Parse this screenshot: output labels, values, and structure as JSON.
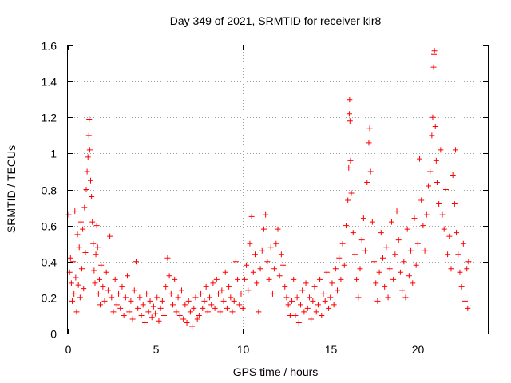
{
  "chart_data": {
    "type": "scatter",
    "title": "Day 349 of 2021, SRMTID for receiver kir8",
    "xlabel": "GPS time / hours",
    "ylabel": "SRMTID / TECUs",
    "xlim": [
      0,
      24
    ],
    "ylim": [
      0,
      1.6
    ],
    "grid": true,
    "marker": "plus",
    "color": "#ff0000",
    "x_ticks": [
      0,
      5,
      10,
      15,
      20
    ],
    "x_tick_labels": [
      "0",
      "5",
      "10",
      "15",
      "20"
    ],
    "y_ticks": [
      0,
      0.2,
      0.4,
      0.6,
      0.8,
      1.0,
      1.2,
      1.4,
      1.6
    ],
    "y_tick_labels": [
      "0",
      "0.2",
      "0.4",
      "0.6",
      "0.8",
      "1",
      "1.2",
      "1.4",
      "1.6"
    ],
    "series": [
      {
        "name": "SRMTID",
        "points": [
          [
            0.05,
            0.66
          ],
          [
            0.1,
            0.34
          ],
          [
            0.15,
            0.42
          ],
          [
            0.2,
            0.28
          ],
          [
            0.25,
            0.18
          ],
          [
            0.3,
            0.4
          ],
          [
            0.35,
            0.22
          ],
          [
            0.4,
            0.68
          ],
          [
            0.45,
            0.31
          ],
          [
            0.5,
            0.12
          ],
          [
            0.55,
            0.55
          ],
          [
            0.6,
            0.27
          ],
          [
            0.65,
            0.48
          ],
          [
            0.7,
            0.2
          ],
          [
            0.75,
            0.62
          ],
          [
            0.8,
            0.36
          ],
          [
            0.85,
            0.58
          ],
          [
            0.9,
            0.25
          ],
          [
            0.95,
            0.7
          ],
          [
            1.0,
            0.45
          ],
          [
            1.05,
            0.8
          ],
          [
            1.1,
            0.9
          ],
          [
            1.15,
            0.98
          ],
          [
            1.2,
            1.1
          ],
          [
            1.22,
            1.19
          ],
          [
            1.25,
            1.02
          ],
          [
            1.3,
            0.85
          ],
          [
            1.35,
            0.76
          ],
          [
            1.4,
            0.62
          ],
          [
            1.45,
            0.5
          ],
          [
            1.5,
            0.35
          ],
          [
            1.55,
            0.28
          ],
          [
            1.6,
            0.44
          ],
          [
            1.65,
            0.6
          ],
          [
            1.7,
            0.48
          ],
          [
            1.75,
            0.22
          ],
          [
            1.8,
            0.3
          ],
          [
            1.85,
            0.16
          ],
          [
            1.9,
            0.38
          ],
          [
            2.0,
            0.26
          ],
          [
            2.1,
            0.18
          ],
          [
            2.2,
            0.34
          ],
          [
            2.3,
            0.24
          ],
          [
            2.4,
            0.54
          ],
          [
            2.5,
            0.2
          ],
          [
            2.6,
            0.12
          ],
          [
            2.7,
            0.3
          ],
          [
            2.8,
            0.16
          ],
          [
            2.9,
            0.22
          ],
          [
            3.0,
            0.14
          ],
          [
            3.1,
            0.26
          ],
          [
            3.2,
            0.1
          ],
          [
            3.3,
            0.2
          ],
          [
            3.4,
            0.32
          ],
          [
            3.5,
            0.12
          ],
          [
            3.6,
            0.18
          ],
          [
            3.7,
            0.08
          ],
          [
            3.8,
            0.24
          ],
          [
            3.9,
            0.4
          ],
          [
            4.0,
            0.14
          ],
          [
            4.1,
            0.2
          ],
          [
            4.2,
            0.1
          ],
          [
            4.3,
            0.16
          ],
          [
            4.4,
            0.06
          ],
          [
            4.5,
            0.22
          ],
          [
            4.6,
            0.12
          ],
          [
            4.7,
            0.18
          ],
          [
            4.8,
            0.09
          ],
          [
            4.9,
            0.15
          ],
          [
            5.0,
            0.11
          ],
          [
            5.1,
            0.2
          ],
          [
            5.2,
            0.07
          ],
          [
            5.3,
            0.14
          ],
          [
            5.4,
            0.18
          ],
          [
            5.5,
            0.1
          ],
          [
            5.6,
            0.26
          ],
          [
            5.7,
            0.42
          ],
          [
            5.8,
            0.32
          ],
          [
            5.9,
            0.22
          ],
          [
            6.0,
            0.16
          ],
          [
            6.1,
            0.3
          ],
          [
            6.2,
            0.12
          ],
          [
            6.3,
            0.2
          ],
          [
            6.4,
            0.1
          ],
          [
            6.5,
            0.24
          ],
          [
            6.6,
            0.08
          ],
          [
            6.7,
            0.16
          ],
          [
            6.8,
            0.06
          ],
          [
            6.9,
            0.18
          ],
          [
            7.0,
            0.12
          ],
          [
            7.1,
            0.04
          ],
          [
            7.2,
            0.14
          ],
          [
            7.3,
            0.2
          ],
          [
            7.4,
            0.08
          ],
          [
            7.5,
            0.1
          ],
          [
            7.6,
            0.22
          ],
          [
            7.7,
            0.14
          ],
          [
            7.8,
            0.18
          ],
          [
            7.9,
            0.26
          ],
          [
            8.0,
            0.12
          ],
          [
            8.1,
            0.2
          ],
          [
            8.2,
            0.16
          ],
          [
            8.3,
            0.28
          ],
          [
            8.4,
            0.14
          ],
          [
            8.5,
            0.3
          ],
          [
            8.6,
            0.22
          ],
          [
            8.7,
            0.12
          ],
          [
            8.8,
            0.24
          ],
          [
            8.9,
            0.18
          ],
          [
            9.0,
            0.34
          ],
          [
            9.1,
            0.14
          ],
          [
            9.2,
            0.26
          ],
          [
            9.3,
            0.2
          ],
          [
            9.4,
            0.12
          ],
          [
            9.5,
            0.18
          ],
          [
            9.6,
            0.4
          ],
          [
            9.7,
            0.3
          ],
          [
            9.8,
            0.16
          ],
          [
            9.9,
            0.22
          ],
          [
            10.0,
            0.14
          ],
          [
            10.1,
            0.3
          ],
          [
            10.2,
            0.38
          ],
          [
            10.3,
            0.24
          ],
          [
            10.4,
            0.5
          ],
          [
            10.5,
            0.65
          ],
          [
            10.6,
            0.34
          ],
          [
            10.7,
            0.44
          ],
          [
            10.8,
            0.28
          ],
          [
            10.9,
            0.12
          ],
          [
            11.0,
            0.36
          ],
          [
            11.1,
            0.46
          ],
          [
            11.2,
            0.58
          ],
          [
            11.3,
            0.66
          ],
          [
            11.4,
            0.4
          ],
          [
            11.5,
            0.3
          ],
          [
            11.6,
            0.48
          ],
          [
            11.7,
            0.22
          ],
          [
            11.8,
            0.36
          ],
          [
            11.9,
            0.5
          ],
          [
            12.0,
            0.58
          ],
          [
            12.1,
            0.32
          ],
          [
            12.2,
            0.44
          ],
          [
            12.3,
            0.38
          ],
          [
            12.4,
            0.26
          ],
          [
            12.5,
            0.2
          ],
          [
            12.6,
            0.16
          ],
          [
            12.7,
            0.1
          ],
          [
            12.8,
            0.18
          ],
          [
            12.9,
            0.3
          ],
          [
            13.0,
            0.1
          ],
          [
            13.1,
            0.2
          ],
          [
            13.2,
            0.06
          ],
          [
            13.3,
            0.16
          ],
          [
            13.4,
            0.24
          ],
          [
            13.5,
            0.12
          ],
          [
            13.6,
            0.28
          ],
          [
            13.7,
            0.14
          ],
          [
            13.8,
            0.2
          ],
          [
            13.9,
            0.08
          ],
          [
            14.0,
            0.18
          ],
          [
            14.1,
            0.26
          ],
          [
            14.2,
            0.12
          ],
          [
            14.3,
            0.16
          ],
          [
            14.4,
            0.3
          ],
          [
            14.5,
            0.1
          ],
          [
            14.6,
            0.22
          ],
          [
            14.7,
            0.18
          ],
          [
            14.8,
            0.34
          ],
          [
            14.9,
            0.14
          ],
          [
            15.0,
            0.2
          ],
          [
            15.1,
            0.28
          ],
          [
            15.2,
            0.16
          ],
          [
            15.3,
            0.36
          ],
          [
            15.4,
            0.24
          ],
          [
            15.5,
            0.42
          ],
          [
            15.6,
            0.3
          ],
          [
            15.7,
            0.5
          ],
          [
            15.8,
            0.38
          ],
          [
            15.9,
            0.6
          ],
          [
            16.0,
            0.74
          ],
          [
            16.05,
            0.92
          ],
          [
            16.08,
            1.22
          ],
          [
            16.1,
            1.3
          ],
          [
            16.12,
            1.18
          ],
          [
            16.15,
            0.96
          ],
          [
            16.2,
            0.78
          ],
          [
            16.3,
            0.56
          ],
          [
            16.4,
            0.44
          ],
          [
            16.5,
            0.3
          ],
          [
            16.6,
            0.2
          ],
          [
            16.7,
            0.36
          ],
          [
            16.8,
            0.52
          ],
          [
            16.9,
            0.64
          ],
          [
            17.0,
            0.46
          ],
          [
            17.1,
            0.84
          ],
          [
            17.2,
            1.06
          ],
          [
            17.25,
            1.14
          ],
          [
            17.3,
            0.9
          ],
          [
            17.4,
            0.62
          ],
          [
            17.5,
            0.4
          ],
          [
            17.6,
            0.28
          ],
          [
            17.7,
            0.18
          ],
          [
            17.8,
            0.34
          ],
          [
            17.9,
            0.56
          ],
          [
            18.0,
            0.42
          ],
          [
            18.1,
            0.26
          ],
          [
            18.2,
            0.48
          ],
          [
            18.3,
            0.2
          ],
          [
            18.4,
            0.36
          ],
          [
            18.5,
            0.62
          ],
          [
            18.6,
            0.3
          ],
          [
            18.7,
            0.44
          ],
          [
            18.8,
            0.68
          ],
          [
            18.9,
            0.52
          ],
          [
            19.0,
            0.34
          ],
          [
            19.1,
            0.24
          ],
          [
            19.2,
            0.4
          ],
          [
            19.3,
            0.2
          ],
          [
            19.4,
            0.58
          ],
          [
            19.5,
            0.32
          ],
          [
            19.6,
            0.46
          ],
          [
            19.7,
            0.28
          ],
          [
            19.8,
            0.64
          ],
          [
            19.9,
            0.38
          ],
          [
            20.0,
            0.5
          ],
          [
            20.1,
            0.97
          ],
          [
            20.2,
            0.74
          ],
          [
            20.3,
            0.6
          ],
          [
            20.4,
            0.46
          ],
          [
            20.5,
            0.66
          ],
          [
            20.6,
            0.82
          ],
          [
            20.7,
            0.9
          ],
          [
            20.8,
            1.1
          ],
          [
            20.85,
            1.2
          ],
          [
            20.9,
            1.48
          ],
          [
            20.92,
            1.55
          ],
          [
            20.95,
            1.57
          ],
          [
            21.0,
            1.15
          ],
          [
            21.05,
            0.96
          ],
          [
            21.1,
            0.84
          ],
          [
            21.2,
            0.72
          ],
          [
            21.3,
            1.02
          ],
          [
            21.4,
            0.66
          ],
          [
            21.5,
            0.58
          ],
          [
            21.6,
            0.8
          ],
          [
            21.7,
            0.44
          ],
          [
            21.8,
            0.54
          ],
          [
            21.9,
            0.36
          ],
          [
            22.0,
            0.88
          ],
          [
            22.1,
            0.72
          ],
          [
            22.15,
            1.02
          ],
          [
            22.2,
            0.56
          ],
          [
            22.3,
            0.44
          ],
          [
            22.4,
            0.34
          ],
          [
            22.5,
            0.26
          ],
          [
            22.6,
            0.5
          ],
          [
            22.7,
            0.18
          ],
          [
            22.8,
            0.36
          ],
          [
            22.85,
            0.14
          ],
          [
            22.9,
            0.4
          ]
        ]
      }
    ]
  }
}
